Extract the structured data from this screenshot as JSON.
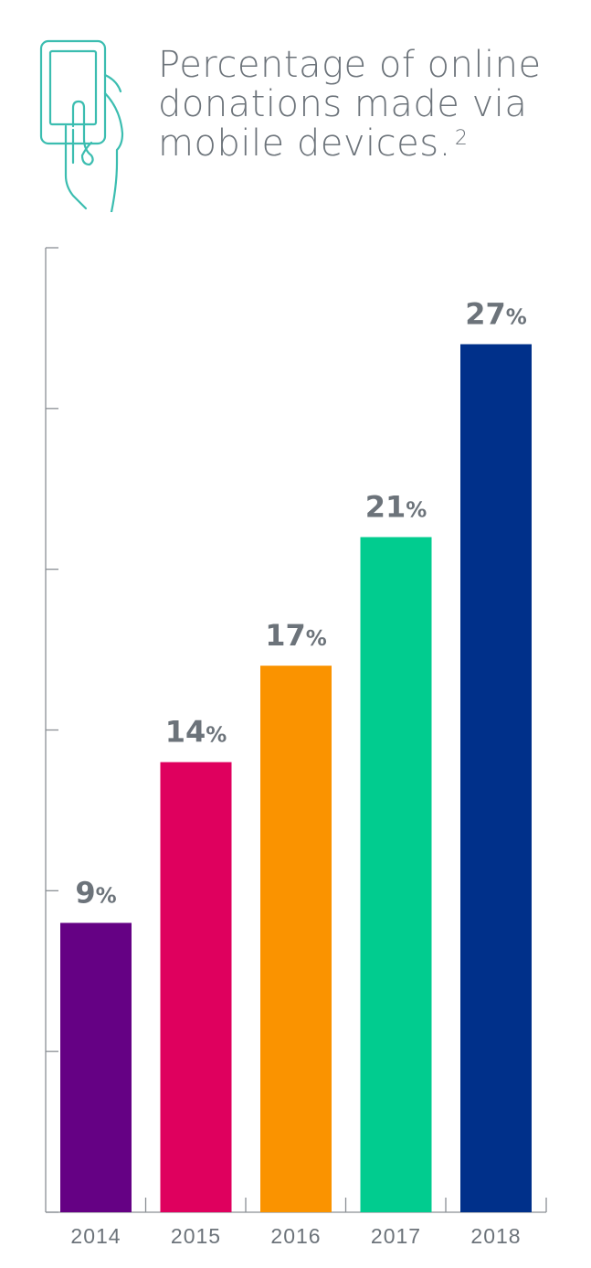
{
  "title": {
    "line1": "Percentage of online",
    "line2": "donations made via",
    "line3": "mobile devices.",
    "footnote": "2"
  },
  "icon": "hand-holding-phone-icon",
  "chart_data": {
    "type": "bar",
    "title": "Percentage of online donations made via mobile devices.",
    "categories": [
      "2014",
      "2015",
      "2016",
      "2017",
      "2018"
    ],
    "values": [
      9,
      14,
      17,
      21,
      27
    ],
    "value_labels": [
      "9",
      "14",
      "17",
      "21",
      "27"
    ],
    "value_suffix": "%",
    "colors": [
      "#650184",
      "#df005e",
      "#fa9300",
      "#01cc8f",
      "#00308a"
    ],
    "ylim": [
      0,
      30
    ],
    "y_ticks": [
      0,
      5,
      10,
      15,
      20,
      25,
      30
    ],
    "y_tick_labels_shown": false,
    "xlabel": "",
    "ylabel": "",
    "grid": false,
    "legend": "none",
    "text_color": "#6c737a",
    "axis_color": "#8a8f94",
    "icon_color": "#3bbdb0"
  }
}
